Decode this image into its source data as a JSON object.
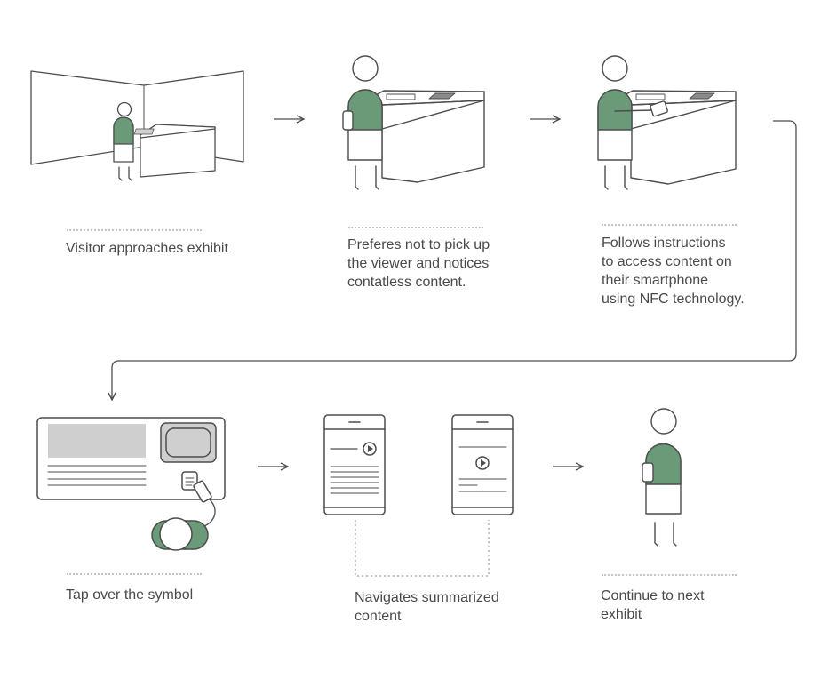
{
  "colors": {
    "stroke": "#4d4d4d",
    "accent": "#6a9a78",
    "gray_fill": "#cfcfcf",
    "dots": "#c4c4c4",
    "text": "#4a4a4a"
  },
  "steps": [
    {
      "caption": "Visitor approaches exhibit",
      "icon": "exhibit-room-illustration"
    },
    {
      "caption": "Preferes not to pick up\nthe viewer and notices\ncontatless content.",
      "icon": "visitor-at-kiosk-illustration"
    },
    {
      "caption": "Follows instructions\nto access content on\ntheir smartphone\nusing NFC technology.",
      "icon": "visitor-tapping-phone-illustration"
    },
    {
      "caption": "Tap over the symbol",
      "icon": "nfc-tap-panel-illustration"
    },
    {
      "caption": "Navigates summarized\ncontent",
      "icon": "smartphone-screens-illustration"
    },
    {
      "caption": "Continue to next\nexhibit",
      "icon": "visitor-walking-illustration"
    }
  ],
  "icons": {
    "arrow": "arrow-right-icon",
    "flow_connector": "flow-connector-arrow",
    "play": "play-icon"
  }
}
